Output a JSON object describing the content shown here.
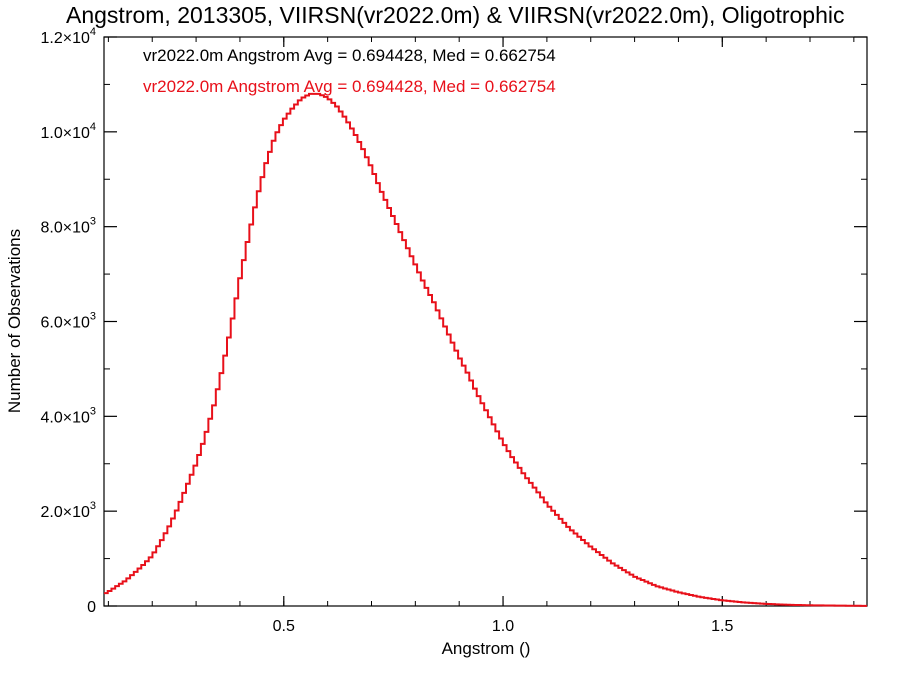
{
  "chart_data": {
    "type": "line",
    "step": true,
    "title": "Angstrom, 2013305, VIIRSN(vr2022.0m) & VIIRSN(vr2022.0m), Oligotrophic",
    "xlabel": "Angstrom ()",
    "ylabel": "Number of Observations",
    "xlim": [
      0.09,
      1.83
    ],
    "ylim": [
      0,
      12000
    ],
    "x_ticks": [
      {
        "value": 0.5,
        "label": "0.5"
      },
      {
        "value": 1.0,
        "label": "1.0"
      },
      {
        "value": 1.5,
        "label": "1.5"
      }
    ],
    "y_ticks": [
      {
        "value": 0,
        "label": "0",
        "exp": ""
      },
      {
        "value": 2000,
        "label": "2.0×10",
        "exp": "3"
      },
      {
        "value": 4000,
        "label": "4.0×10",
        "exp": "3"
      },
      {
        "value": 6000,
        "label": "6.0×10",
        "exp": "3"
      },
      {
        "value": 8000,
        "label": "8.0×10",
        "exp": "3"
      },
      {
        "value": 10000,
        "label": "1.0×10",
        "exp": "4"
      },
      {
        "value": 12000,
        "label": "1.2×10",
        "exp": "4"
      }
    ],
    "grid": false,
    "annotations": [
      {
        "text": "vr2022.0m Angstrom Avg = 0.694428, Med = 0.662754",
        "color": "#000000"
      },
      {
        "text": "vr2022.0m Angstrom Avg = 0.694428, Med = 0.662754",
        "color": "#e8101a"
      }
    ],
    "series": [
      {
        "color": "#e8101a",
        "x": [
          0.09,
          0.1,
          0.12,
          0.14,
          0.16,
          0.18,
          0.2,
          0.22,
          0.24,
          0.26,
          0.28,
          0.3,
          0.32,
          0.34,
          0.36,
          0.38,
          0.4,
          0.42,
          0.44,
          0.46,
          0.48,
          0.5,
          0.52,
          0.54,
          0.56,
          0.58,
          0.6,
          0.62,
          0.64,
          0.66,
          0.68,
          0.7,
          0.72,
          0.74,
          0.76,
          0.78,
          0.8,
          0.82,
          0.84,
          0.86,
          0.88,
          0.9,
          0.92,
          0.94,
          0.96,
          0.98,
          1.0,
          1.02,
          1.05,
          1.08,
          1.1,
          1.15,
          1.2,
          1.25,
          1.3,
          1.35,
          1.4,
          1.45,
          1.5,
          1.55,
          1.6,
          1.65,
          1.7,
          1.75,
          1.8,
          1.83
        ],
        "y": [
          250,
          300,
          420,
          540,
          700,
          870,
          1060,
          1360,
          1700,
          2100,
          2550,
          3000,
          3550,
          4200,
          5000,
          5900,
          6900,
          7800,
          8650,
          9350,
          9900,
          10250,
          10500,
          10700,
          10800,
          10800,
          10720,
          10550,
          10300,
          10000,
          9650,
          9250,
          8800,
          8400,
          8000,
          7600,
          7200,
          6800,
          6450,
          6050,
          5650,
          5250,
          4900,
          4500,
          4150,
          3800,
          3450,
          3150,
          2750,
          2400,
          2150,
          1650,
          1250,
          900,
          620,
          420,
          290,
          190,
          120,
          75,
          45,
          25,
          15,
          10,
          5,
          3
        ]
      }
    ]
  }
}
